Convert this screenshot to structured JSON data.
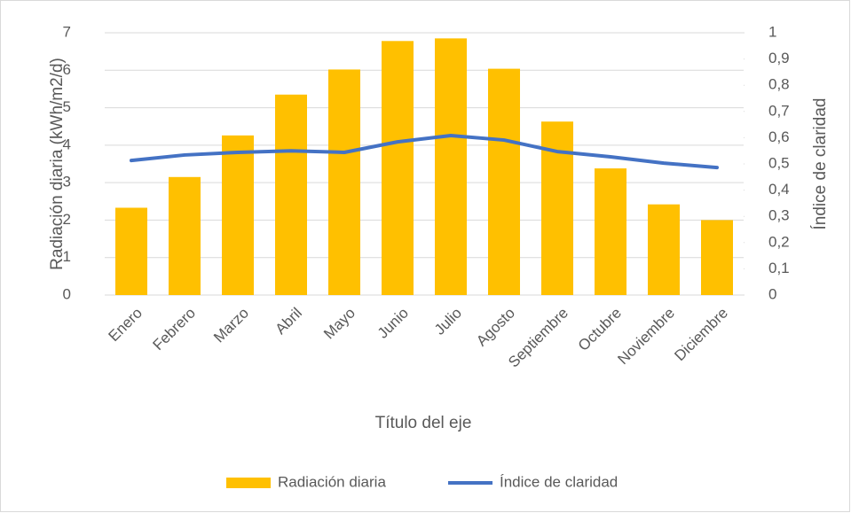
{
  "chart_data": {
    "type": "bar-line",
    "x_label": "Título del eje",
    "y_label": "Radiación diaria (kWh/m2/d)",
    "y2_label": "Índice de claridad",
    "categories": [
      "Enero",
      "Febrero",
      "Marzo",
      "Abril",
      "Mayo",
      "Junio",
      "Julio",
      "Agosto",
      "Septiembre",
      "Octubre",
      "Noviembre",
      "Diciembre"
    ],
    "series": [
      {
        "name": "Radiación diaria",
        "color": "#ffc000",
        "type": "bar",
        "values": [
          2.33,
          3.15,
          4.26,
          5.35,
          6.02,
          6.78,
          6.85,
          6.04,
          4.63,
          3.38,
          2.42,
          2.0
        ]
      },
      {
        "name": "Índice de claridad",
        "color": "#4472c4",
        "type": "line",
        "axis": "y2",
        "values": [
          0.513,
          0.534,
          0.544,
          0.55,
          0.544,
          0.584,
          0.608,
          0.591,
          0.547,
          0.527,
          0.503,
          0.486
        ]
      }
    ],
    "ylim": [
      0,
      7
    ],
    "yticks": [
      0,
      1,
      2,
      3,
      4,
      5,
      6,
      7
    ],
    "y2lim": [
      0,
      1
    ],
    "y2ticks": [
      0,
      {
        "value": 0.1,
        "label": "0,1"
      },
      {
        "value": 0.2,
        "label": "0,2"
      },
      {
        "value": 0.3,
        "label": "0,3"
      },
      {
        "value": 0.4,
        "label": "0,4"
      },
      {
        "value": 0.5,
        "label": "0,5"
      },
      {
        "value": 0.6,
        "label": "0,6"
      },
      {
        "value": 0.7,
        "label": "0,7"
      },
      {
        "value": 0.8,
        "label": "0,8"
      },
      {
        "value": 0.9,
        "label": "0,9"
      },
      1
    ],
    "grid": true,
    "legend": "bottom"
  }
}
